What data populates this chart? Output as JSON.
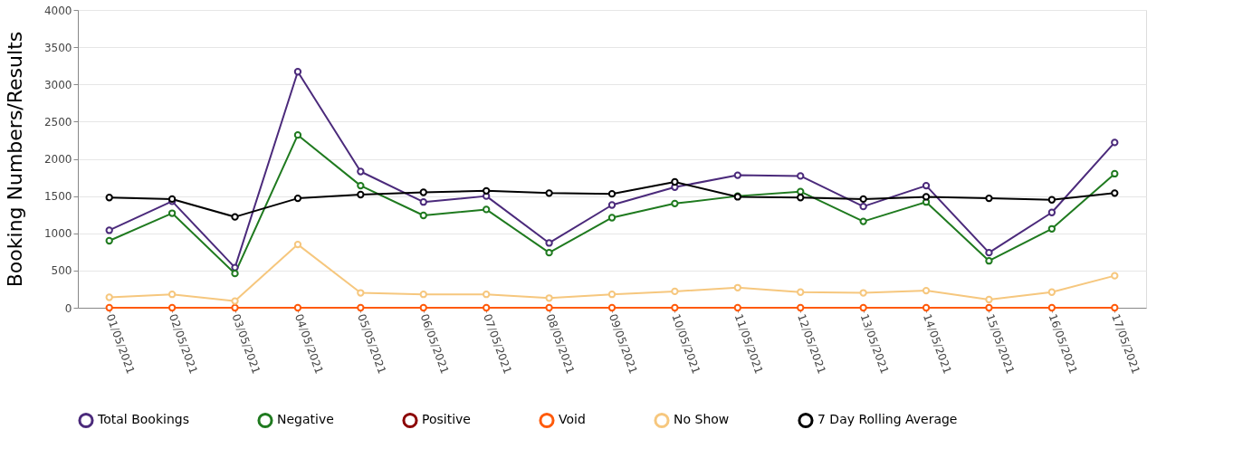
{
  "chart_data": {
    "type": "line",
    "ylabel": "Booking Numbers/Results",
    "categories": [
      "01/05/2021",
      "02/05/2021",
      "03/05/2021",
      "04/05/2021",
      "05/05/2021",
      "06/05/2021",
      "07/05/2021",
      "08/05/2021",
      "09/05/2021",
      "10/05/2021",
      "11/05/2021",
      "12/05/2021",
      "13/05/2021",
      "14/05/2021",
      "15/05/2021",
      "16/05/2021",
      "17/05/2021"
    ],
    "series": [
      {
        "name": "Total Bookings",
        "color": "#4b2a7b",
        "values": [
          1040,
          1430,
          540,
          3170,
          1830,
          1420,
          1500,
          870,
          1380,
          1620,
          1780,
          1770,
          1360,
          1640,
          740,
          1280,
          2220
        ]
      },
      {
        "name": "Negative",
        "color": "#1f7a1f",
        "values": [
          900,
          1270,
          460,
          2320,
          1640,
          1240,
          1320,
          740,
          1210,
          1400,
          1500,
          1560,
          1160,
          1420,
          630,
          1060,
          1800
        ]
      },
      {
        "name": "Positive",
        "color": "#8b0000",
        "values": [
          null,
          null,
          null,
          null,
          null,
          null,
          null,
          null,
          null,
          null,
          null,
          null,
          null,
          null,
          null,
          null,
          null
        ]
      },
      {
        "name": "Void",
        "color": "#ff5a0a",
        "values": [
          0,
          0,
          0,
          0,
          0,
          0,
          0,
          0,
          0,
          0,
          0,
          0,
          0,
          0,
          0,
          0,
          0
        ]
      },
      {
        "name": "No Show",
        "color": "#f6c77e",
        "values": [
          140,
          180,
          90,
          850,
          200,
          180,
          180,
          130,
          180,
          220,
          270,
          210,
          200,
          230,
          110,
          210,
          430
        ]
      },
      {
        "name": "7 Day Rolling Average",
        "color": "#000000",
        "values": [
          1480,
          1460,
          1220,
          1470,
          1520,
          1550,
          1570,
          1540,
          1530,
          1690,
          1490,
          1480,
          1460,
          1490,
          1470,
          1450,
          1540
        ]
      }
    ],
    "ylim": [
      0,
      4000
    ],
    "yticks": [
      0,
      500,
      {
        "value": 1000,
        "label": "1000"
      },
      {
        "value": 1500,
        "label": "1500"
      },
      {
        "value": 2000,
        "label": "2000"
      },
      {
        "value": 2500,
        "label": "2500"
      },
      {
        "value": 3000,
        "label": "3000"
      },
      {
        "value": 3500,
        "label": "3500"
      },
      {
        "value": 4000,
        "label": "4000"
      }
    ],
    "grid": "y",
    "legend": "bottom",
    "marker": "circle",
    "line_style": "solid"
  }
}
